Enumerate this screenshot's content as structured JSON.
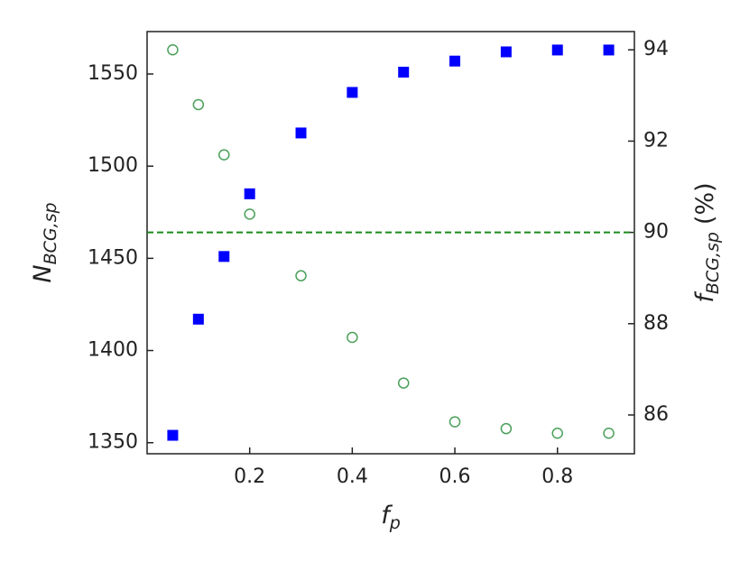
{
  "chart_data": {
    "type": "scatter",
    "xlabel": {
      "text": "f",
      "sub": "p"
    },
    "ylabel": {
      "text": "N",
      "sub": "BCG,sp"
    },
    "y2label": {
      "text": "f",
      "sub": "BCG,sp",
      "suffix": "(%)"
    },
    "x": [
      0.05,
      0.1,
      0.15,
      0.2,
      0.3,
      0.4,
      0.5,
      0.6,
      0.7,
      0.8,
      0.9
    ],
    "xlim": [
      0.0,
      0.95
    ],
    "xticks": [
      0.2,
      0.4,
      0.6,
      0.8
    ],
    "ylim": [
      1344,
      1573
    ],
    "yticks": [
      1350,
      1400,
      1450,
      1500,
      1550
    ],
    "y2lim": [
      85.15,
      94.4
    ],
    "y2ticks": [
      86,
      88,
      90,
      92,
      94
    ],
    "series": [
      {
        "color": "#0000ff",
        "marker": "square",
        "values": [
          1354,
          1417,
          1451,
          1485,
          1518,
          1540,
          1551,
          1557,
          1562,
          1563,
          1563
        ]
      },
      {
        "color": "#4aa05a",
        "marker": "open-circle",
        "axis": "y2",
        "values": [
          94.0,
          92.8,
          91.7,
          90.4,
          89.05,
          87.7,
          86.7,
          85.85,
          85.7,
          85.6,
          85.6
        ]
      }
    ],
    "hlines": [
      {
        "value": 90,
        "axis": "y2",
        "color": "#1a8a1a",
        "style": "dashed"
      }
    ]
  }
}
